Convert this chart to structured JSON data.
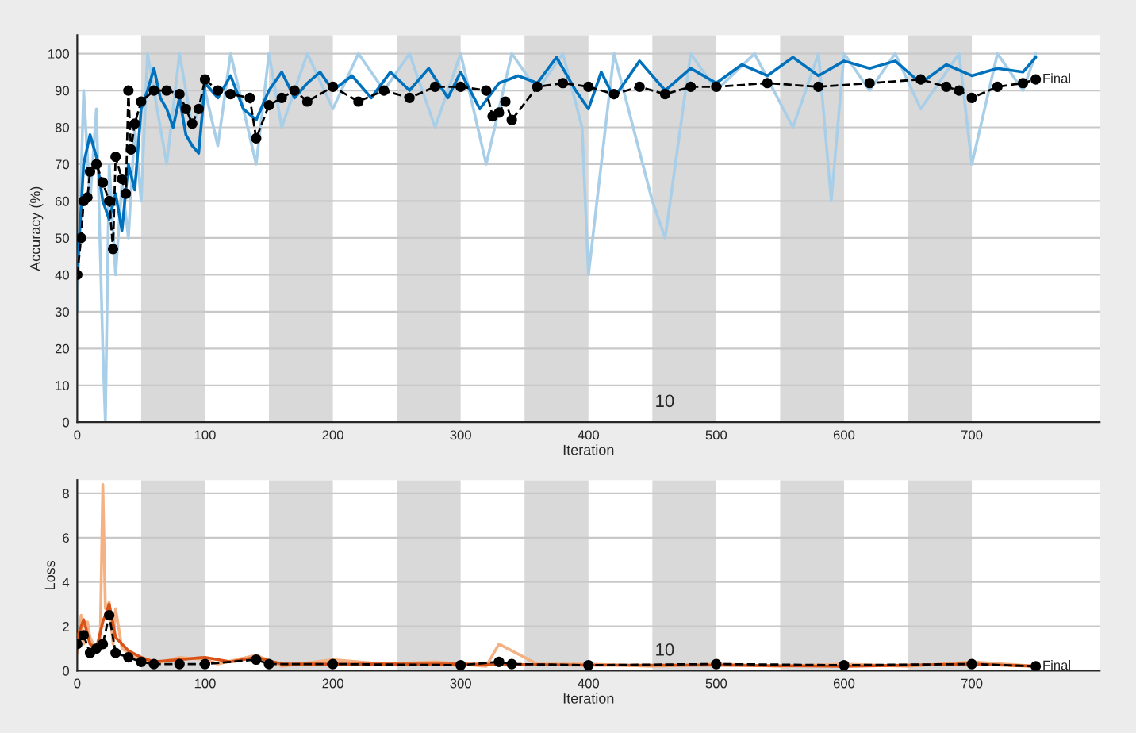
{
  "chart_data": [
    {
      "type": "line",
      "ylabel": "Accuracy (%)",
      "xlabel": "Iteration",
      "xlim": [
        0,
        800
      ],
      "xticks": [
        0,
        100,
        200,
        300,
        400,
        500,
        600,
        700
      ],
      "ylim": [
        0,
        105
      ],
      "yticks": [
        0,
        10,
        20,
        30,
        40,
        50,
        60,
        70,
        80,
        90,
        100
      ],
      "grid": "y",
      "bands": [
        {
          "axis": "x",
          "from": 50,
          "to": 100,
          "color": "#d9d9d9"
        },
        {
          "axis": "x",
          "from": 150,
          "to": 200,
          "color": "#d9d9d9"
        },
        {
          "axis": "x",
          "from": 250,
          "to": 300,
          "color": "#d9d9d9"
        },
        {
          "axis": "x",
          "from": 350,
          "to": 400,
          "color": "#d9d9d9"
        },
        {
          "axis": "x",
          "from": 450,
          "to": 500,
          "color": "#d9d9d9"
        },
        {
          "axis": "x",
          "from": 550,
          "to": 600,
          "color": "#d9d9d9"
        },
        {
          "axis": "x",
          "from": 650,
          "to": 700,
          "color": "#d9d9d9"
        }
      ],
      "annotations": [
        "10",
        {
          "text": "Final",
          "x": 750,
          "y": 93
        }
      ],
      "series": [
        {
          "color": "#a9cfe8",
          "x": [
            0,
            5,
            10,
            15,
            20,
            22,
            25,
            30,
            35,
            40,
            45,
            50,
            55,
            60,
            70,
            80,
            90,
            100,
            110,
            120,
            140,
            150,
            160,
            180,
            200,
            220,
            240,
            260,
            280,
            300,
            320,
            340,
            360,
            380,
            395,
            400,
            420,
            450,
            460,
            480,
            500,
            530,
            560,
            580,
            590,
            600,
            620,
            640,
            660,
            690,
            700,
            720,
            740,
            750
          ],
          "values": [
            30,
            90,
            60,
            85,
            20,
            0,
            70,
            40,
            65,
            50,
            80,
            60,
            100,
            90,
            70,
            100,
            80,
            90,
            75,
            100,
            70,
            100,
            80,
            100,
            85,
            100,
            90,
            100,
            80,
            100,
            70,
            100,
            90,
            100,
            80,
            40,
            100,
            60,
            50,
            100,
            90,
            100,
            80,
            100,
            60,
            100,
            90,
            100,
            85,
            100,
            70,
            100,
            90,
            100
          ]
        },
        {
          "color": "#0072bd",
          "x": [
            0,
            5,
            10,
            15,
            20,
            25,
            30,
            35,
            40,
            45,
            50,
            55,
            60,
            65,
            70,
            75,
            80,
            85,
            90,
            95,
            100,
            110,
            120,
            130,
            140,
            150,
            160,
            170,
            180,
            190,
            200,
            215,
            230,
            245,
            260,
            275,
            290,
            300,
            315,
            330,
            345,
            360,
            375,
            390,
            400,
            410,
            420,
            440,
            460,
            480,
            500,
            520,
            540,
            560,
            580,
            600,
            620,
            640,
            660,
            680,
            700,
            720,
            740,
            750
          ],
          "values": [
            40,
            70,
            78,
            72,
            60,
            55,
            62,
            52,
            70,
            63,
            85,
            90,
            96,
            88,
            85,
            80,
            88,
            78,
            75,
            73,
            92,
            88,
            94,
            85,
            82,
            90,
            95,
            88,
            92,
            95,
            90,
            94,
            88,
            95,
            90,
            96,
            88,
            95,
            85,
            92,
            94,
            92,
            99,
            90,
            85,
            95,
            88,
            98,
            90,
            96,
            92,
            97,
            94,
            99,
            94,
            98,
            96,
            98,
            92,
            97,
            94,
            96,
            95,
            99
          ]
        },
        {
          "color": "#000000",
          "marker": "circle",
          "line_style": "dashed",
          "x": [
            0,
            3,
            5,
            8,
            10,
            15,
            20,
            25,
            28,
            30,
            35,
            38,
            40,
            42,
            45,
            50,
            60,
            70,
            80,
            85,
            90,
            95,
            100,
            110,
            120,
            135,
            140,
            150,
            160,
            170,
            180,
            200,
            220,
            240,
            260,
            280,
            300,
            320,
            325,
            330,
            335,
            340,
            360,
            380,
            400,
            420,
            440,
            460,
            480,
            500,
            540,
            580,
            620,
            660,
            680,
            690,
            700,
            720,
            740,
            750
          ],
          "values": [
            40,
            50,
            60,
            61,
            68,
            70,
            65,
            60,
            47,
            72,
            66,
            62,
            90,
            74,
            81,
            87,
            90,
            90,
            89,
            85,
            81,
            85,
            93,
            90,
            89,
            88,
            77,
            86,
            88,
            90,
            87,
            91,
            87,
            90,
            88,
            91,
            91,
            90,
            83,
            84,
            87,
            82,
            91,
            92,
            91,
            89,
            91,
            89,
            91,
            91,
            92,
            91,
            92,
            93,
            91,
            90,
            88,
            91,
            92,
            93
          ]
        }
      ]
    },
    {
      "type": "line",
      "ylabel": "Loss",
      "xlabel": "Iteration",
      "xlim": [
        0,
        800
      ],
      "xticks": [
        0,
        100,
        200,
        300,
        400,
        500,
        600,
        700
      ],
      "ylim": [
        0,
        8.6
      ],
      "yticks": [
        0,
        2,
        4,
        6,
        8
      ],
      "grid": "y",
      "bands": [
        {
          "axis": "x",
          "from": 50,
          "to": 100,
          "color": "#d9d9d9"
        },
        {
          "axis": "x",
          "from": 150,
          "to": 200,
          "color": "#d9d9d9"
        },
        {
          "axis": "x",
          "from": 250,
          "to": 300,
          "color": "#d9d9d9"
        },
        {
          "axis": "x",
          "from": 350,
          "to": 400,
          "color": "#d9d9d9"
        },
        {
          "axis": "x",
          "from": 450,
          "to": 500,
          "color": "#d9d9d9"
        },
        {
          "axis": "x",
          "from": 550,
          "to": 600,
          "color": "#d9d9d9"
        },
        {
          "axis": "x",
          "from": 650,
          "to": 700,
          "color": "#d9d9d9"
        }
      ],
      "annotations": [
        "10",
        {
          "text": "Final",
          "x": 750,
          "y": 0.2
        }
      ],
      "series": [
        {
          "color": "#f4b183",
          "x": [
            0,
            3,
            5,
            8,
            10,
            15,
            18,
            20,
            22,
            25,
            28,
            30,
            35,
            40,
            50,
            60,
            80,
            100,
            110,
            140,
            160,
            200,
            240,
            280,
            320,
            330,
            360,
            400,
            450,
            500,
            550,
            600,
            650,
            700,
            750
          ],
          "values": [
            0.8,
            2.5,
            1.2,
            2.2,
            1.5,
            0.9,
            1.5,
            8.4,
            2.8,
            3.1,
            1.2,
            2.8,
            1,
            0.8,
            0.5,
            0.3,
            0.6,
            0.5,
            0.3,
            0.7,
            0.2,
            0.5,
            0.3,
            0.4,
            0.2,
            1.2,
            0.3,
            0.3,
            0.2,
            0.3,
            0.2,
            0.3,
            0.2,
            0.4,
            0.2
          ]
        },
        {
          "color": "#d95319",
          "x": [
            0,
            5,
            10,
            15,
            20,
            25,
            30,
            40,
            50,
            60,
            80,
            100,
            120,
            140,
            160,
            200,
            300,
            400,
            500,
            600,
            700,
            750
          ],
          "values": [
            1.5,
            2.3,
            1.2,
            1,
            2.2,
            3,
            1.5,
            0.9,
            0.6,
            0.4,
            0.5,
            0.6,
            0.4,
            0.6,
            0.3,
            0.3,
            0.3,
            0.25,
            0.25,
            0.2,
            0.3,
            0.2
          ]
        },
        {
          "color": "#000000",
          "marker": "circle",
          "line_style": "dashed",
          "x": [
            0,
            5,
            10,
            15,
            20,
            25,
            30,
            40,
            50,
            60,
            80,
            100,
            140,
            150,
            200,
            300,
            330,
            340,
            400,
            500,
            600,
            700,
            750
          ],
          "values": [
            1.2,
            1.6,
            0.8,
            1.0,
            1.2,
            2.5,
            0.8,
            0.6,
            0.4,
            0.3,
            0.3,
            0.3,
            0.5,
            0.3,
            0.3,
            0.25,
            0.4,
            0.3,
            0.25,
            0.3,
            0.25,
            0.3,
            0.2
          ]
        }
      ]
    }
  ]
}
